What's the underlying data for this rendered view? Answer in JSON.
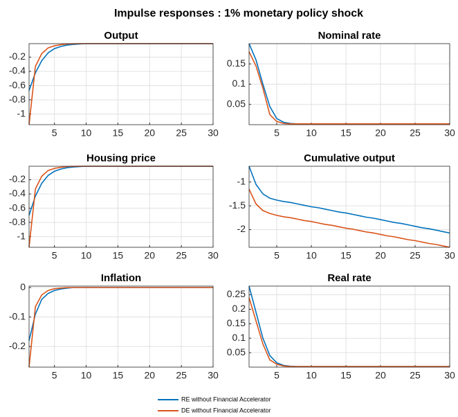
{
  "title": "Impulse responses : 1% monetary policy shock",
  "chart_data": [
    {
      "type": "line",
      "title": "Output",
      "x": [
        1,
        2,
        3,
        4,
        5,
        6,
        7,
        8,
        9,
        10,
        11,
        12,
        13,
        14,
        15,
        16,
        17,
        18,
        19,
        20,
        21,
        22,
        23,
        24,
        25,
        26,
        27,
        28,
        29,
        30
      ],
      "xlim": [
        1,
        30
      ],
      "xticks": [
        5,
        10,
        15,
        20,
        25,
        30
      ],
      "ylim": [
        -1.15,
        -0.01
      ],
      "yticks": [
        -1,
        -0.8,
        -0.6,
        -0.4,
        -0.2
      ],
      "grid": true,
      "series": [
        {
          "name": "RE without Financial Accelerator",
          "color": "#0072bd",
          "values": [
            -0.67,
            -0.42,
            -0.25,
            -0.14,
            -0.08,
            -0.05,
            -0.03,
            -0.02,
            -0.015,
            -0.01,
            -0.01,
            -0.01,
            -0.01,
            -0.01,
            -0.01,
            -0.01,
            -0.01,
            -0.01,
            -0.01,
            -0.01,
            -0.01,
            -0.01,
            -0.01,
            -0.01,
            -0.01,
            -0.01,
            -0.01,
            -0.01,
            -0.01,
            -0.01
          ]
        },
        {
          "name": "DE without Financial Accelerator",
          "color": "#d95319",
          "values": [
            -1.15,
            -0.33,
            -0.15,
            -0.07,
            -0.04,
            -0.025,
            -0.015,
            -0.012,
            -0.01,
            -0.01,
            -0.01,
            -0.01,
            -0.01,
            -0.01,
            -0.01,
            -0.01,
            -0.01,
            -0.01,
            -0.01,
            -0.01,
            -0.01,
            -0.01,
            -0.01,
            -0.01,
            -0.01,
            -0.01,
            -0.01,
            -0.01,
            -0.01,
            -0.01
          ]
        }
      ]
    },
    {
      "type": "line",
      "title": "Nominal rate",
      "x": [
        1,
        2,
        3,
        4,
        5,
        6,
        7,
        8,
        9,
        10,
        11,
        12,
        13,
        14,
        15,
        16,
        17,
        18,
        19,
        20,
        21,
        22,
        23,
        24,
        25,
        26,
        27,
        28,
        29,
        30
      ],
      "xlim": [
        1,
        30
      ],
      "xticks": [
        5,
        10,
        15,
        20,
        25,
        30
      ],
      "ylim": [
        0,
        0.2
      ],
      "yticks": [
        0.05,
        0.1,
        0.15
      ],
      "grid": true,
      "series": [
        {
          "color": "#0072bd",
          "values": [
            0.2,
            0.16,
            0.1,
            0.045,
            0.015,
            0.006,
            0.003,
            0.002,
            0.002,
            0.002,
            0.002,
            0.002,
            0.002,
            0.002,
            0.002,
            0.002,
            0.002,
            0.002,
            0.002,
            0.002,
            0.002,
            0.002,
            0.002,
            0.002,
            0.002,
            0.002,
            0.002,
            0.002,
            0.002,
            0.002
          ]
        },
        {
          "color": "#d95319",
          "values": [
            0.18,
            0.145,
            0.09,
            0.025,
            0.008,
            0.003,
            0.002,
            0.002,
            0.002,
            0.002,
            0.002,
            0.002,
            0.002,
            0.002,
            0.002,
            0.002,
            0.002,
            0.002,
            0.002,
            0.002,
            0.002,
            0.002,
            0.002,
            0.002,
            0.002,
            0.002,
            0.002,
            0.002,
            0.002,
            0.002
          ]
        }
      ]
    },
    {
      "type": "line",
      "title": "Housing price",
      "x": [
        1,
        2,
        3,
        4,
        5,
        6,
        7,
        8,
        9,
        10,
        11,
        12,
        13,
        14,
        15,
        16,
        17,
        18,
        19,
        20,
        21,
        22,
        23,
        24,
        25,
        26,
        27,
        28,
        29,
        30
      ],
      "xlim": [
        1,
        30
      ],
      "xticks": [
        5,
        10,
        15,
        20,
        25,
        30
      ],
      "ylim": [
        -1.15,
        -0.01
      ],
      "yticks": [
        -1,
        -0.8,
        -0.6,
        -0.4,
        -0.2
      ],
      "grid": true,
      "series": [
        {
          "color": "#0072bd",
          "values": [
            -0.7,
            -0.43,
            -0.25,
            -0.14,
            -0.08,
            -0.05,
            -0.03,
            -0.02,
            -0.015,
            -0.01,
            -0.01,
            -0.01,
            -0.01,
            -0.01,
            -0.01,
            -0.01,
            -0.01,
            -0.01,
            -0.01,
            -0.01,
            -0.01,
            -0.01,
            -0.01,
            -0.01,
            -0.01,
            -0.01,
            -0.01,
            -0.01,
            -0.01,
            -0.01
          ]
        },
        {
          "color": "#d95319",
          "values": [
            -1.15,
            -0.33,
            -0.15,
            -0.07,
            -0.04,
            -0.025,
            -0.015,
            -0.012,
            -0.01,
            -0.01,
            -0.01,
            -0.01,
            -0.01,
            -0.01,
            -0.01,
            -0.01,
            -0.01,
            -0.01,
            -0.01,
            -0.01,
            -0.01,
            -0.01,
            -0.01,
            -0.01,
            -0.01,
            -0.01,
            -0.01,
            -0.01,
            -0.01,
            -0.01
          ]
        }
      ]
    },
    {
      "type": "line",
      "title": "Cumulative output",
      "x": [
        1,
        2,
        3,
        4,
        5,
        6,
        7,
        8,
        9,
        10,
        11,
        12,
        13,
        14,
        15,
        16,
        17,
        18,
        19,
        20,
        21,
        22,
        23,
        24,
        25,
        26,
        27,
        28,
        29,
        30
      ],
      "xlim": [
        1,
        30
      ],
      "xticks": [
        5,
        10,
        15,
        20,
        25,
        30
      ],
      "ylim": [
        -2.37,
        -0.67
      ],
      "yticks": [
        -2,
        -1.5,
        -1
      ],
      "grid": true,
      "series": [
        {
          "color": "#0072bd",
          "values": [
            -0.67,
            -1.05,
            -1.25,
            -1.34,
            -1.38,
            -1.41,
            -1.43,
            -1.46,
            -1.49,
            -1.52,
            -1.54,
            -1.57,
            -1.6,
            -1.63,
            -1.65,
            -1.68,
            -1.71,
            -1.74,
            -1.76,
            -1.79,
            -1.82,
            -1.85,
            -1.87,
            -1.9,
            -1.93,
            -1.96,
            -1.98,
            -2.01,
            -2.04,
            -2.07
          ]
        },
        {
          "color": "#d95319",
          "values": [
            -1.15,
            -1.46,
            -1.6,
            -1.66,
            -1.7,
            -1.73,
            -1.75,
            -1.78,
            -1.81,
            -1.83,
            -1.86,
            -1.89,
            -1.91,
            -1.94,
            -1.97,
            -1.99,
            -2.02,
            -2.05,
            -2.07,
            -2.1,
            -2.13,
            -2.15,
            -2.18,
            -2.21,
            -2.23,
            -2.26,
            -2.29,
            -2.31,
            -2.34,
            -2.37
          ]
        }
      ]
    },
    {
      "type": "line",
      "title": "Inflation",
      "x": [
        1,
        2,
        3,
        4,
        5,
        6,
        7,
        8,
        9,
        10,
        11,
        12,
        13,
        14,
        15,
        16,
        17,
        18,
        19,
        20,
        21,
        22,
        23,
        24,
        25,
        26,
        27,
        28,
        29,
        30
      ],
      "xlim": [
        1,
        30
      ],
      "xticks": [
        5,
        10,
        15,
        20,
        25,
        30
      ],
      "ylim": [
        -0.27,
        0.005
      ],
      "yticks": [
        -0.2,
        -0.1,
        0
      ],
      "grid": true,
      "series": [
        {
          "color": "#0072bd",
          "values": [
            -0.18,
            -0.09,
            -0.04,
            -0.02,
            -0.01,
            -0.005,
            -0.002,
            0,
            0,
            0,
            0,
            0,
            0,
            0,
            0,
            0,
            0,
            0,
            0,
            0,
            0,
            0,
            0,
            0,
            0,
            0,
            0,
            0,
            0,
            0
          ]
        },
        {
          "color": "#d95319",
          "values": [
            -0.27,
            -0.065,
            -0.025,
            -0.01,
            -0.004,
            -0.002,
            0,
            0,
            0,
            0,
            0,
            0,
            0,
            0,
            0,
            0,
            0,
            0,
            0,
            0,
            0,
            0,
            0,
            0,
            0,
            0,
            0,
            0,
            0,
            0
          ]
        }
      ]
    },
    {
      "type": "line",
      "title": "Real rate",
      "x": [
        1,
        2,
        3,
        4,
        5,
        6,
        7,
        8,
        9,
        10,
        11,
        12,
        13,
        14,
        15,
        16,
        17,
        18,
        19,
        20,
        21,
        22,
        23,
        24,
        25,
        26,
        27,
        28,
        29,
        30
      ],
      "xlim": [
        1,
        30
      ],
      "xticks": [
        5,
        10,
        15,
        20,
        25,
        30
      ],
      "ylim": [
        0,
        0.28
      ],
      "yticks": [
        0.05,
        0.1,
        0.15,
        0.2,
        0.25
      ],
      "grid": true,
      "series": [
        {
          "color": "#0072bd",
          "values": [
            0.28,
            0.19,
            0.1,
            0.04,
            0.015,
            0.006,
            0.003,
            0.002,
            0.002,
            0.002,
            0.002,
            0.002,
            0.002,
            0.002,
            0.002,
            0.002,
            0.002,
            0.002,
            0.002,
            0.002,
            0.002,
            0.002,
            0.002,
            0.002,
            0.002,
            0.002,
            0.002,
            0.002,
            0.002,
            0.002
          ]
        },
        {
          "color": "#d95319",
          "values": [
            0.24,
            0.16,
            0.08,
            0.025,
            0.01,
            0.004,
            0.002,
            0.002,
            0.002,
            0.002,
            0.002,
            0.002,
            0.002,
            0.002,
            0.002,
            0.002,
            0.002,
            0.002,
            0.002,
            0.002,
            0.002,
            0.002,
            0.002,
            0.002,
            0.002,
            0.002,
            0.002,
            0.002,
            0.002,
            0.002
          ]
        }
      ]
    }
  ]
}
